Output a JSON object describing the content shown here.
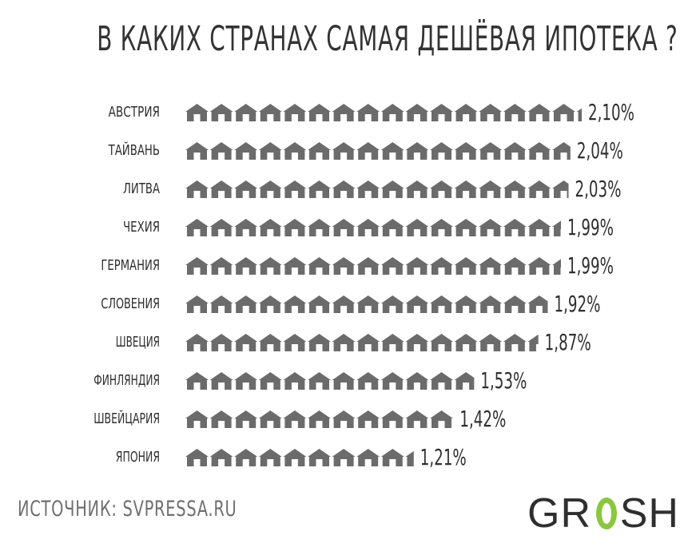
{
  "title": "В КАКИХ СТРАНАХ САМАЯ ДЕШЁВАЯ ИПОТЕКА ?",
  "source": "ИСТОЧНИК: SVPRESSA.RU",
  "logo": {
    "left": "GR",
    "right": "SH"
  },
  "colors": {
    "house": "#6b6b6b",
    "text": "#2f2f2f",
    "accent": "#8cc63f"
  },
  "chart_data": {
    "type": "bar",
    "style": "pictogram-houses",
    "categories": [
      "АВСТРИЯ",
      "ТАЙВАНЬ",
      "ЛИТВА",
      "ЧЕХИЯ",
      "ГЕРМАНИЯ",
      "СЛОВЕНИЯ",
      "ШВЕЦИЯ",
      "ФИНЛЯНДИЯ",
      "ШВЕЙЦАРИЯ",
      "ЯПОНИЯ"
    ],
    "values": [
      2.1,
      2.04,
      2.03,
      1.99,
      1.99,
      1.92,
      1.87,
      1.53,
      1.42,
      1.21
    ],
    "value_labels": [
      "2,10%",
      "2,04%",
      "2,03%",
      "1,99%",
      "1,99%",
      "1,92%",
      "1,87%",
      "1,53%",
      "1,42%",
      "1,21%"
    ],
    "unit": "%"
  }
}
